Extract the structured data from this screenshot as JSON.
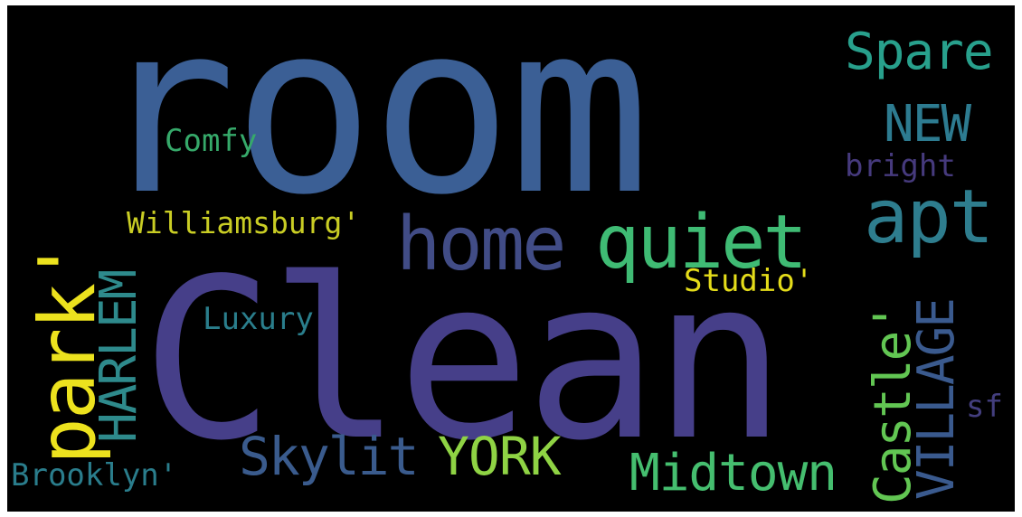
{
  "words": {
    "room": {
      "text": "room",
      "color": "#3b5f95"
    },
    "clean": {
      "text": "Clean",
      "color": "#463f89"
    },
    "home": {
      "text": "home",
      "color": "#414c86"
    },
    "quiet": {
      "text": "quiet",
      "color": "#3fbb74"
    },
    "apt": {
      "text": "apt",
      "color": "#2e7d8e"
    },
    "spare": {
      "text": "Spare",
      "color": "#28a08c"
    },
    "new": {
      "text": "NEW",
      "color": "#2d7b90"
    },
    "bright": {
      "text": "bright",
      "color": "#463a7d"
    },
    "comfy": {
      "text": "Comfy",
      "color": "#36a96a"
    },
    "williamsburg": {
      "text": "Williamsburg'",
      "color": "#c9cd24"
    },
    "studio": {
      "text": "Studio'",
      "color": "#e4dc1a"
    },
    "park": {
      "text": "park'",
      "color": "#ece21e"
    },
    "harlem": {
      "text": "HARLEM",
      "color": "#2e8a8c"
    },
    "luxury": {
      "text": "Luxury",
      "color": "#2a7e8c"
    },
    "castle": {
      "text": "Castle'",
      "color": "#62c653"
    },
    "village": {
      "text": "VILLAGE",
      "color": "#3a5a8e"
    },
    "sf": {
      "text": "sf",
      "color": "#433e7e"
    },
    "skylit": {
      "text": "Skylit",
      "color": "#3a5b8d"
    },
    "york": {
      "text": "YORK",
      "color": "#8fd344"
    },
    "midtown": {
      "text": "Midtown",
      "color": "#45be6f"
    },
    "brooklyn": {
      "text": "Brooklyn'",
      "color": "#2a7d8c"
    }
  }
}
